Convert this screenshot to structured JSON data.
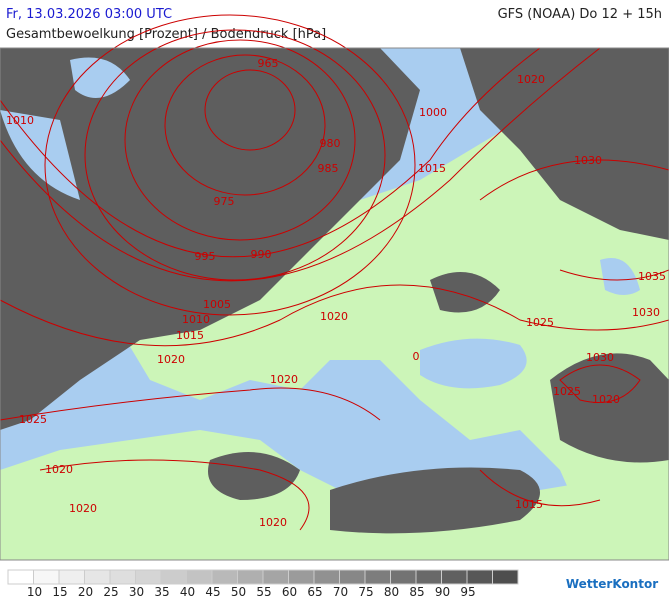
{
  "header": {
    "datetime": "Fr, 13.03.2026 03:00 UTC",
    "model": "GFS (NOAA) Do 12 + 15h",
    "title": "Gesamtbewoelkung [Prozent] / Bodendruck [hPa]"
  },
  "map": {
    "isobar_color": "#cc0000",
    "isobar_labels": [
      965,
      1010,
      980,
      985,
      975,
      995,
      990,
      1005,
      1010,
      1015,
      1000,
      1015,
      1020,
      1030,
      1035,
      1030,
      1025,
      1020,
      1020,
      1020,
      0,
      1030,
      1025,
      1020,
      1025,
      1020,
      1020,
      1020,
      1015
    ]
  },
  "legend": {
    "ticks": [
      10,
      15,
      20,
      25,
      30,
      35,
      40,
      45,
      50,
      55,
      60,
      65,
      70,
      75,
      80,
      85,
      90,
      95
    ],
    "colors": [
      "#ffffff",
      "#f7f7f7",
      "#efefef",
      "#e6e6e6",
      "#dedede",
      "#d5d5d5",
      "#cccccc",
      "#c3c3c3",
      "#b9b9b9",
      "#afafaf",
      "#a5a5a5",
      "#9b9b9b",
      "#919191",
      "#878787",
      "#7d7d7d",
      "#737373",
      "#696969",
      "#606060",
      "#575757",
      "#4e4e4e"
    ]
  },
  "brand": "WetterKontor"
}
